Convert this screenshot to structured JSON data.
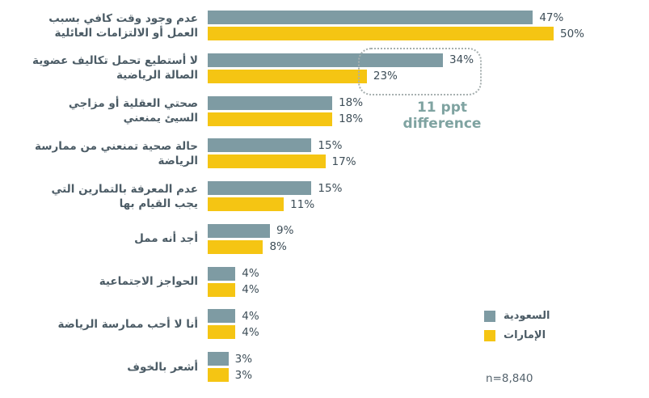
{
  "chart_data": {
    "type": "bar",
    "orientation": "horizontal",
    "title": "",
    "categories": [
      "عدم وجود وقت كافي بسبب العمل أو الالتزامات العائلية",
      "لا أستطيع تحمل تكاليف عضوية الصالة الرياضية",
      "صحتي العقلية أو مزاجي السيئ يمنعني",
      "حالة صحية تمنعني من ممارسة الرياضة",
      "عدم المعرفة بالتمارين التي يجب القيام بها",
      "أجد أنه ممل",
      "الحواجز الاجتماعية",
      "أنا لا أحب ممارسة الرياضة",
      "أشعر بالخوف"
    ],
    "categories_wrapped": [
      [
        "عدم وجود وقت كافي بسبب",
        "العمل أو الالتزامات العائلية"
      ],
      [
        "لا أستطيع تحمل تكاليف عضوية",
        "الصالة الرياضية"
      ],
      [
        "صحتي العقلية أو مزاجي",
        "السيئ يمنعني"
      ],
      [
        "حالة صحية تمنعني من ممارسة",
        "الرياضة"
      ],
      [
        "عدم المعرفة بالتمارين التي",
        "يجب القيام بها"
      ],
      [
        "أجد أنه ممل"
      ],
      [
        "الحواجز الاجتماعية"
      ],
      [
        "أنا لا أحب ممارسة الرياضة"
      ],
      [
        "أشعر بالخوف"
      ]
    ],
    "series": [
      {
        "name": "السعودية",
        "color": "#7E9BA3",
        "values": [
          47,
          34,
          18,
          15,
          15,
          9,
          4,
          4,
          3
        ]
      },
      {
        "name": "الإمارات",
        "color": "#F5C513",
        "values": [
          50,
          23,
          18,
          17,
          11,
          8,
          4,
          4,
          3
        ]
      }
    ],
    "value_suffix": "%",
    "xlim": [
      0,
      50
    ],
    "grid": false,
    "value_labels": true,
    "legend_position": "bottom-right"
  },
  "annotation": {
    "line1": "11 ppt",
    "line2": "difference",
    "color": "#7FA3A1",
    "highlighted_category": "لا أستطيع تحمل تكاليف عضوية الصالة الرياضية"
  },
  "footnote": "n=8,840"
}
